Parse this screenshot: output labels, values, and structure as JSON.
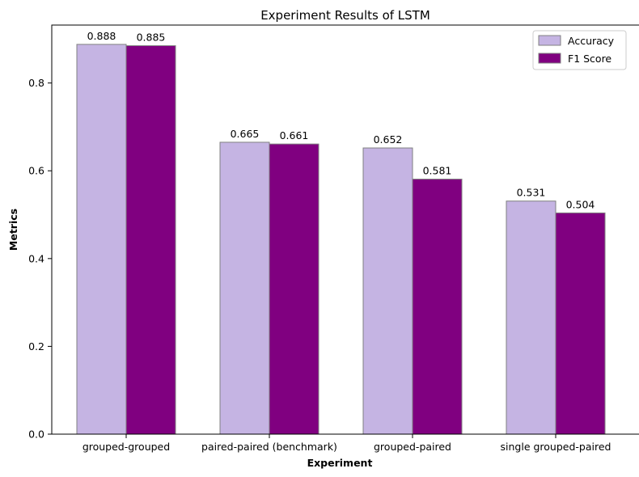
{
  "chart_data": {
    "type": "bar",
    "title": "Experiment Results of LSTM",
    "xlabel": "Experiment",
    "ylabel": "Metrics",
    "categories": [
      "grouped-grouped",
      "paired-paired (benchmark)",
      "grouped-paired",
      "single grouped-paired"
    ],
    "series": [
      {
        "name": "Accuracy",
        "values": [
          0.888,
          0.665,
          0.652,
          0.531
        ],
        "labels": [
          "0.888",
          "0.665",
          "0.652",
          "0.531"
        ],
        "color": "#c5b4e3"
      },
      {
        "name": "F1 Score",
        "values": [
          0.885,
          0.661,
          0.581,
          0.504
        ],
        "labels": [
          "0.885",
          "0.661",
          "0.581",
          "0.504"
        ],
        "color": "#800080"
      }
    ],
    "ylim": [
      0,
      0.932
    ],
    "yticks": [
      0.0,
      0.2,
      0.4,
      0.6,
      0.8
    ],
    "ytick_labels": [
      "0.0",
      "0.2",
      "0.4",
      "0.6",
      "0.8"
    ],
    "grid": false,
    "legend_position": "top-right",
    "bar_edge_color": "#808080"
  }
}
